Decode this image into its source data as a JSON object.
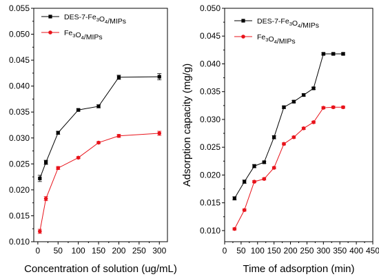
{
  "chart_data": [
    {
      "type": "line",
      "title": "",
      "xlabel": "Concentration of solution (ug/mL)",
      "ylabel": "",
      "xlim": [
        -10,
        320
      ],
      "ylim": [
        0.01,
        0.055
      ],
      "xticks": [
        0,
        50,
        100,
        150,
        200,
        250,
        300
      ],
      "yticks": [
        0.01,
        0.015,
        0.02,
        0.025,
        0.03,
        0.035,
        0.04,
        0.045,
        0.05,
        0.055
      ],
      "legend_position": "top-left",
      "error_bars": true,
      "series": [
        {
          "name_parts": [
            [
              "DES-7-Fe",
              false
            ],
            [
              "3",
              true
            ],
            [
              "O",
              false
            ],
            [
              "4",
              true
            ],
            [
              "/MIPs",
              false
            ]
          ],
          "color": "#000000",
          "marker": "square",
          "x": [
            5,
            20,
            50,
            100,
            150,
            200,
            300
          ],
          "y": [
            0.0222,
            0.0253,
            0.031,
            0.0354,
            0.0361,
            0.0417,
            0.0418
          ],
          "err": [
            0.0006,
            0.0004,
            0.0003,
            0.0002,
            0.0003,
            0.0004,
            0.0006
          ]
        },
        {
          "name_parts": [
            [
              "Fe",
              false
            ],
            [
              "3",
              true
            ],
            [
              "O",
              false
            ],
            [
              "4",
              true
            ],
            [
              "/MIPs",
              false
            ]
          ],
          "color": "#e8121a",
          "marker": "circle",
          "x": [
            5,
            20,
            50,
            100,
            150,
            200,
            300
          ],
          "y": [
            0.012,
            0.0183,
            0.0242,
            0.0262,
            0.0291,
            0.0304,
            0.0309
          ],
          "err": [
            0.0004,
            0.0004,
            0.0003,
            0.0002,
            0.0002,
            0.0003,
            0.0004
          ]
        }
      ]
    },
    {
      "type": "line",
      "title": "",
      "xlabel": "Time of adsorption (min)",
      "ylabel": "Adsorption capacity (mg/g)",
      "xlim": [
        0,
        450
      ],
      "ylim": [
        0.008,
        0.05
      ],
      "xticks": [
        0,
        50,
        100,
        150,
        200,
        250,
        300,
        350,
        400,
        450
      ],
      "yticks": [
        0.01,
        0.015,
        0.02,
        0.025,
        0.03,
        0.035,
        0.04,
        0.045,
        0.05
      ],
      "legend_position": "top-left",
      "error_bars": true,
      "series": [
        {
          "name_parts": [
            [
              "DES-7-Fe",
              false
            ],
            [
              "3",
              true
            ],
            [
              "O",
              false
            ],
            [
              "4",
              true
            ],
            [
              "/MIPs",
              false
            ]
          ],
          "color": "#000000",
          "marker": "square",
          "x": [
            30,
            60,
            90,
            120,
            150,
            180,
            210,
            240,
            270,
            300,
            330,
            360
          ],
          "y": [
            0.0158,
            0.0188,
            0.0216,
            0.0223,
            0.0268,
            0.0322,
            0.0332,
            0.0344,
            0.0356,
            0.0418,
            0.0418,
            0.0418
          ],
          "err": [
            0.0003,
            0.0003,
            0.0003,
            0.0002,
            0.0003,
            0.0002,
            0.0002,
            0.0002,
            0.0002,
            0.0002,
            0.0002,
            0.0002
          ]
        },
        {
          "name_parts": [
            [
              "Fe",
              false
            ],
            [
              "3",
              true
            ],
            [
              "O",
              false
            ],
            [
              "4",
              true
            ],
            [
              "/MIPs",
              false
            ]
          ],
          "color": "#e8121a",
          "marker": "circle",
          "x": [
            30,
            60,
            90,
            120,
            150,
            180,
            210,
            240,
            270,
            300,
            330,
            360
          ],
          "y": [
            0.0103,
            0.0137,
            0.0188,
            0.0193,
            0.0213,
            0.0256,
            0.0268,
            0.0284,
            0.0295,
            0.0321,
            0.0322,
            0.0322
          ],
          "err": [
            0.0002,
            0.0002,
            0.0002,
            0.0002,
            0.0002,
            0.0002,
            0.0002,
            0.0002,
            0.0002,
            0.0002,
            0.0002,
            0.0002
          ]
        }
      ]
    }
  ]
}
